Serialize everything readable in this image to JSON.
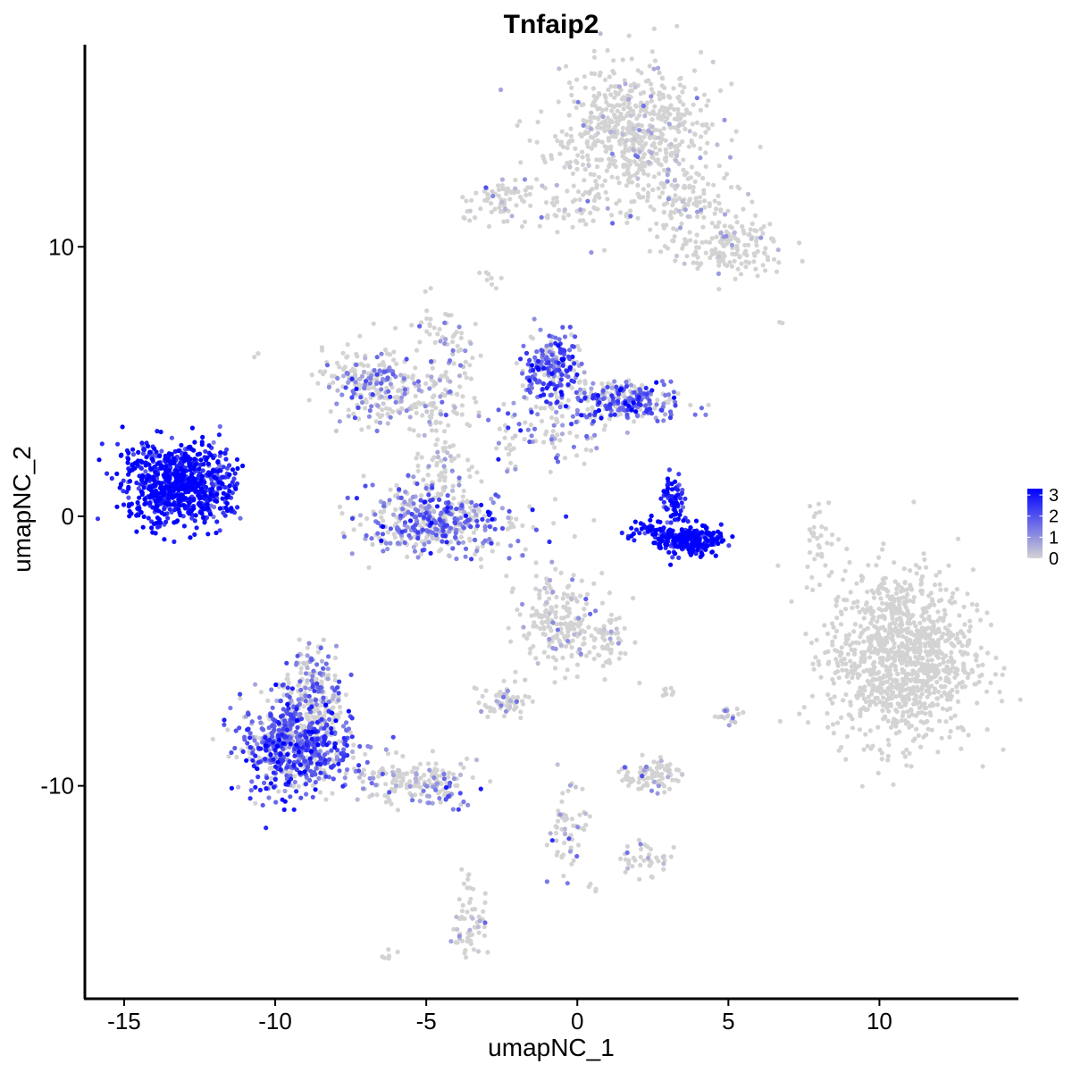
{
  "chart_data": {
    "type": "scatter",
    "title": "Tnfaip2",
    "xlabel": "umapNC_1",
    "ylabel": "umapNC_2",
    "xlim": [
      -16.3,
      14.6
    ],
    "ylim": [
      -17.9,
      17.5
    ],
    "x_ticks": [
      -15,
      -10,
      -5,
      0,
      5,
      10
    ],
    "x_tick_labels": [
      "-15",
      "-10",
      "-5",
      "0",
      "5",
      "10"
    ],
    "y_ticks": [
      -10,
      0,
      10
    ],
    "y_tick_labels": [
      "-10",
      "0",
      "10"
    ],
    "grid": false,
    "legend": {
      "placement": "right",
      "type": "colorbar",
      "min": 0,
      "max": 3.3,
      "ticks": [
        0,
        1,
        2,
        3
      ],
      "tick_labels": [
        "0",
        "1",
        "2",
        "3"
      ],
      "low_color": "#d3d3d3",
      "high_color": "#0000ff"
    },
    "clusters": [
      {
        "cx": 1.8,
        "cy": 14.2,
        "sx": 1.3,
        "sy": 1.3,
        "n": 650,
        "expr": 0.01
      },
      {
        "cx": 3.8,
        "cy": 11.5,
        "sx": 0.9,
        "sy": 0.9,
        "n": 120,
        "expr": 0.01
      },
      {
        "cx": 5.1,
        "cy": 10.0,
        "sx": 0.9,
        "sy": 0.5,
        "n": 150,
        "expr": 0.01
      },
      {
        "cx": -2.4,
        "cy": 11.8,
        "sx": 0.6,
        "sy": 0.35,
        "n": 70,
        "expr": 0.08
      },
      {
        "cx": -0.3,
        "cy": 11.3,
        "sx": 1.3,
        "sy": 0.4,
        "n": 50,
        "expr": 0.05
      },
      {
        "cx": 10.7,
        "cy": -5.2,
        "sx": 1.2,
        "sy": 1.6,
        "n": 1100,
        "expr": 0.0
      },
      {
        "cx": 8.0,
        "cy": -0.7,
        "sx": 0.25,
        "sy": 0.6,
        "n": 30,
        "expr": 0.0
      },
      {
        "cx": -13.4,
        "cy": 1.2,
        "sx": 0.8,
        "sy": 0.75,
        "n": 650,
        "expr": 0.95
      },
      {
        "cx": -12.0,
        "cy": 1.2,
        "sx": 0.4,
        "sy": 0.8,
        "n": 120,
        "expr": 0.85
      },
      {
        "cx": -0.8,
        "cy": 5.5,
        "sx": 0.5,
        "sy": 0.6,
        "n": 200,
        "expr": 0.6
      },
      {
        "cx": 1.5,
        "cy": 4.3,
        "sx": 1.0,
        "sy": 0.4,
        "n": 250,
        "expr": 0.55
      },
      {
        "cx": -0.8,
        "cy": 3.5,
        "sx": 1.0,
        "sy": 0.7,
        "n": 100,
        "expr": 0.35
      },
      {
        "cx": -7.0,
        "cy": 5.0,
        "sx": 0.7,
        "sy": 0.6,
        "n": 200,
        "expr": 0.3
      },
      {
        "cx": -5.2,
        "cy": 4.2,
        "sx": 0.9,
        "sy": 0.6,
        "n": 120,
        "expr": 0.25
      },
      {
        "cx": -4.3,
        "cy": 6.0,
        "sx": 0.5,
        "sy": 1.0,
        "n": 60,
        "expr": 0.2
      },
      {
        "cx": -4.8,
        "cy": -0.2,
        "sx": 1.1,
        "sy": 0.6,
        "n": 450,
        "expr": 0.45
      },
      {
        "cx": -4.6,
        "cy": 1.8,
        "sx": 0.5,
        "sy": 0.7,
        "n": 60,
        "expr": 0.1
      },
      {
        "cx": 3.8,
        "cy": -0.9,
        "sx": 0.5,
        "sy": 0.25,
        "n": 220,
        "expr": 0.95
      },
      {
        "cx": 3.2,
        "cy": 0.6,
        "sx": 0.2,
        "sy": 0.5,
        "n": 80,
        "expr": 0.85
      },
      {
        "cx": 2.5,
        "cy": -0.6,
        "sx": 0.35,
        "sy": 0.25,
        "n": 60,
        "expr": 0.98
      },
      {
        "cx": -9.3,
        "cy": -8.5,
        "sx": 0.9,
        "sy": 0.9,
        "n": 650,
        "expr": 0.6
      },
      {
        "cx": -8.7,
        "cy": -6.5,
        "sx": 0.5,
        "sy": 1.0,
        "n": 200,
        "expr": 0.35
      },
      {
        "cx": -5.6,
        "cy": -9.8,
        "sx": 1.0,
        "sy": 0.4,
        "n": 150,
        "expr": 0.2
      },
      {
        "cx": -4.4,
        "cy": -10.3,
        "sx": 0.4,
        "sy": 0.25,
        "n": 40,
        "expr": 0.45
      },
      {
        "cx": -0.6,
        "cy": -4.0,
        "sx": 0.6,
        "sy": 0.9,
        "n": 200,
        "expr": 0.08
      },
      {
        "cx": 0.9,
        "cy": -4.6,
        "sx": 0.5,
        "sy": 0.7,
        "n": 60,
        "expr": 0.05
      },
      {
        "cx": -2.5,
        "cy": -6.8,
        "sx": 0.4,
        "sy": 0.3,
        "n": 60,
        "expr": 0.1
      },
      {
        "cx": 2.4,
        "cy": -9.6,
        "sx": 0.5,
        "sy": 0.3,
        "n": 90,
        "expr": 0.1
      },
      {
        "cx": 5.0,
        "cy": -7.4,
        "sx": 0.2,
        "sy": 0.2,
        "n": 20,
        "expr": 0.15
      },
      {
        "cx": -0.3,
        "cy": -11.5,
        "sx": 0.3,
        "sy": 1.0,
        "n": 60,
        "expr": 0.2
      },
      {
        "cx": 2.2,
        "cy": -12.7,
        "sx": 0.4,
        "sy": 0.3,
        "n": 40,
        "expr": 0.05
      },
      {
        "cx": -3.6,
        "cy": -14.9,
        "sx": 0.3,
        "sy": 0.8,
        "n": 60,
        "expr": 0.15
      },
      {
        "cx": -4.9,
        "cy": 7.0,
        "sx": 0.2,
        "sy": 0.5,
        "n": 10,
        "expr": 0.05
      },
      {
        "cx": -2.9,
        "cy": 8.9,
        "sx": 0.2,
        "sy": 0.2,
        "n": 8,
        "expr": 0.0
      },
      {
        "cx": -1.7,
        "cy": -0.4,
        "sx": 0.8,
        "sy": 0.5,
        "n": 20,
        "expr": 0.4
      },
      {
        "cx": -2.3,
        "cy": 2.5,
        "sx": 0.2,
        "sy": 0.5,
        "n": 20,
        "expr": 0.35
      },
      {
        "cx": -10.6,
        "cy": 6.0,
        "sx": 0.1,
        "sy": 0.1,
        "n": 3,
        "expr": 0.0
      },
      {
        "cx": 6.8,
        "cy": 7.1,
        "sx": 0.1,
        "sy": 0.1,
        "n": 2,
        "expr": 0.0
      },
      {
        "cx": -6.1,
        "cy": -16.2,
        "sx": 0.2,
        "sy": 0.15,
        "n": 6,
        "expr": 0.0
      },
      {
        "cx": 2.9,
        "cy": -6.5,
        "sx": 0.2,
        "sy": 0.15,
        "n": 8,
        "expr": 0.0
      },
      {
        "cx": 0.6,
        "cy": -13.8,
        "sx": 0.1,
        "sy": 0.1,
        "n": 4,
        "expr": 0.0
      }
    ]
  }
}
